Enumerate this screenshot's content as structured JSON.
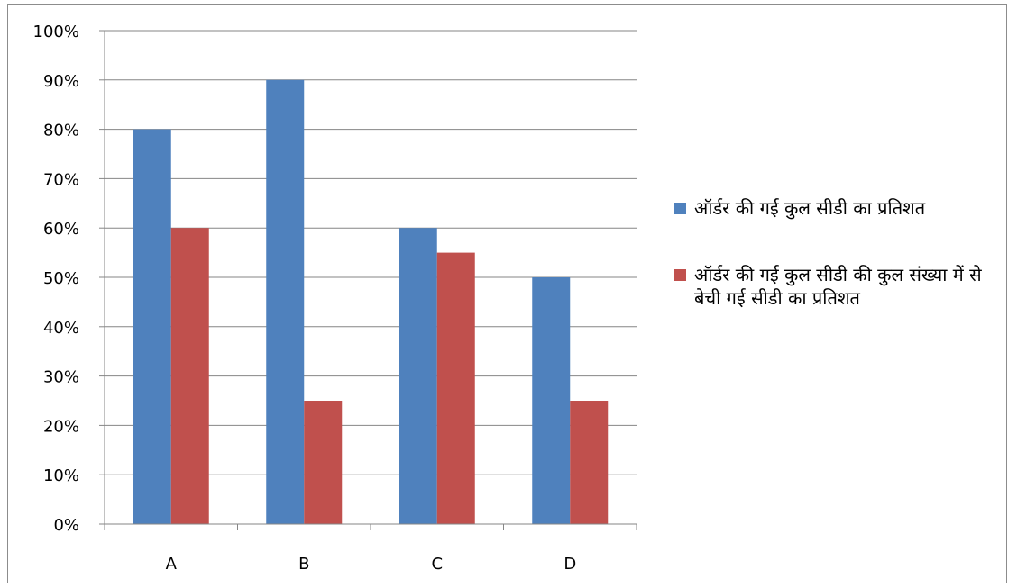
{
  "chart_data": {
    "type": "bar",
    "categories": [
      "A",
      "B",
      "C",
      "D"
    ],
    "series": [
      {
        "name": "ऑर्डर की गई कुल सीडी का प्रतिशत",
        "color": "#4f81bd",
        "values": [
          80,
          90,
          60,
          50
        ]
      },
      {
        "name": "ऑर्डर की गई कुल सीडी की कुल संख्या में से बेची गई सीडी का प्रतिशत",
        "color": "#c0504d",
        "values": [
          60,
          25,
          55,
          25
        ]
      }
    ],
    "ylim": [
      0,
      100
    ],
    "yticks": [
      "0%",
      "10%",
      "20%",
      "30%",
      "40%",
      "50%",
      "60%",
      "70%",
      "80%",
      "90%",
      "100%"
    ],
    "grid": true,
    "legend_position": "right"
  }
}
